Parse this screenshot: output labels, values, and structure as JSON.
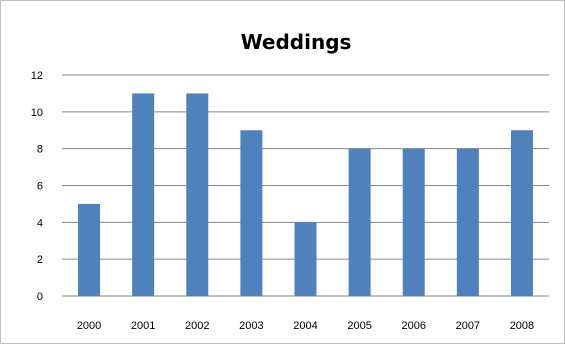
{
  "chart_data": {
    "type": "bar",
    "title": "Weddings",
    "xlabel": "",
    "ylabel": "",
    "categories": [
      "2000",
      "2001",
      "2002",
      "2003",
      "2004",
      "2005",
      "2006",
      "2007",
      "2008"
    ],
    "values": [
      5,
      11,
      11,
      9,
      4,
      8,
      8,
      8,
      9
    ],
    "ylim": [
      0,
      12
    ],
    "yticks": [
      "0",
      "2",
      "4",
      "6",
      "8",
      "10",
      "12"
    ],
    "grid": true,
    "legend": "none",
    "colors": {
      "bar": "#4f81bd",
      "grid": "#868686",
      "frame": "#bfbfbf",
      "text": "#000000"
    }
  }
}
